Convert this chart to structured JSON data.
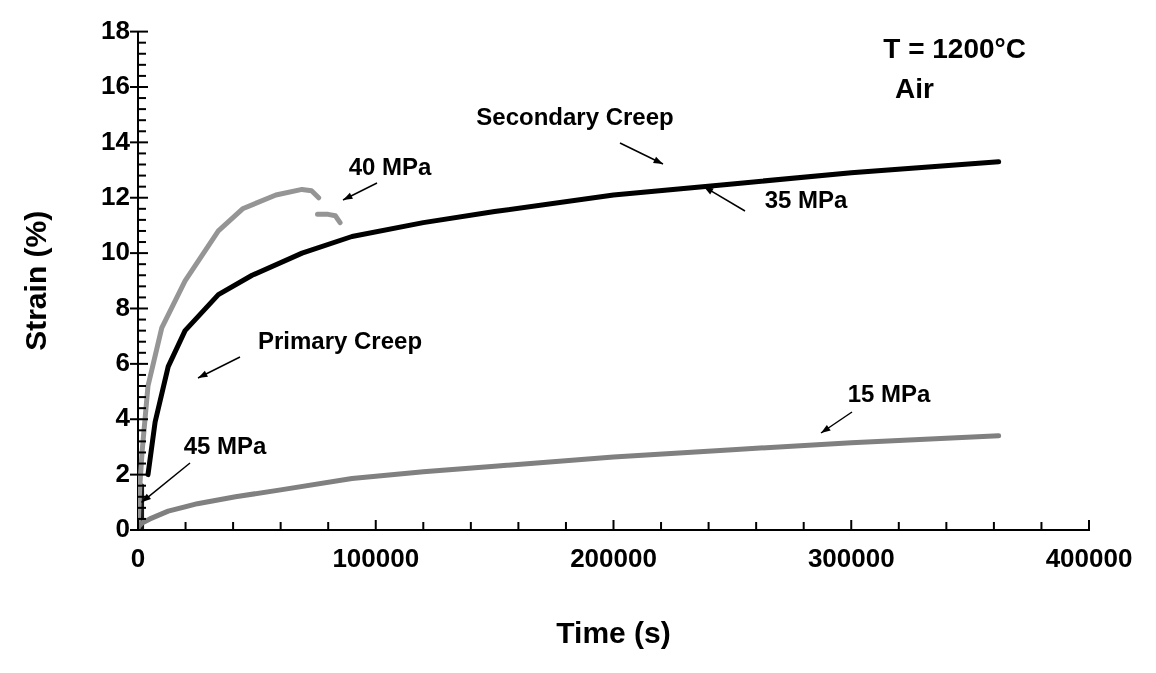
{
  "chart_data": {
    "type": "line",
    "xlabel": "Time (s)",
    "ylabel": "Strain (%)",
    "marker": "none",
    "line_style": "solid",
    "grid": false,
    "legend": false,
    "xlim": [
      0,
      400000
    ],
    "ylim": [
      0,
      18
    ],
    "xticks": [
      0,
      {
        "value": 20000,
        "label": null
      },
      {
        "value": 40000,
        "label": null
      },
      {
        "value": 60000,
        "label": null
      },
      {
        "value": 80000,
        "label": null
      },
      100000,
      {
        "value": 120000,
        "label": null
      },
      {
        "value": 140000,
        "label": null
      },
      {
        "value": 160000,
        "label": null
      },
      {
        "value": 180000,
        "label": null
      },
      200000,
      {
        "value": 220000,
        "label": null
      },
      {
        "value": 240000,
        "label": null
      },
      {
        "value": 260000,
        "label": null
      },
      {
        "value": 280000,
        "label": null
      },
      300000,
      {
        "value": 320000,
        "label": null
      },
      {
        "value": 340000,
        "label": null
      },
      {
        "value": 360000,
        "label": null
      },
      {
        "value": 380000,
        "label": null
      },
      400000
    ],
    "yticks": [
      0,
      {
        "value": 0.4,
        "label": null
      },
      {
        "value": 0.8,
        "label": null
      },
      {
        "value": 1.2,
        "label": null
      },
      {
        "value": 1.6,
        "label": null
      },
      2,
      {
        "value": 2.4,
        "label": null
      },
      {
        "value": 2.8,
        "label": null
      },
      {
        "value": 3.2,
        "label": null
      },
      {
        "value": 3.6,
        "label": null
      },
      4,
      {
        "value": 4.4,
        "label": null
      },
      {
        "value": 4.8,
        "label": null
      },
      {
        "value": 5.2,
        "label": null
      },
      {
        "value": 5.6,
        "label": null
      },
      6,
      {
        "value": 6.4,
        "label": null
      },
      {
        "value": 6.8,
        "label": null
      },
      {
        "value": 7.2,
        "label": null
      },
      {
        "value": 7.6,
        "label": null
      },
      8,
      {
        "value": 8.4,
        "label": null
      },
      {
        "value": 8.8,
        "label": null
      },
      {
        "value": 9.2,
        "label": null
      },
      {
        "value": 9.6,
        "label": null
      },
      10,
      {
        "value": 10.4,
        "label": null
      },
      {
        "value": 10.8,
        "label": null
      },
      {
        "value": 11.2,
        "label": null
      },
      {
        "value": 11.6,
        "label": null
      },
      12,
      {
        "value": 12.4,
        "label": null
      },
      {
        "value": 12.8,
        "label": null
      },
      {
        "value": 13.2,
        "label": null
      },
      {
        "value": 13.6,
        "label": null
      },
      14,
      {
        "value": 14.4,
        "label": null
      },
      {
        "value": 14.8,
        "label": null
      },
      {
        "value": 15.2,
        "label": null
      },
      {
        "value": 15.6,
        "label": null
      },
      16,
      {
        "value": 16.4,
        "label": null
      },
      {
        "value": 16.8,
        "label": null
      },
      {
        "value": 17.2,
        "label": null
      },
      {
        "value": 17.6,
        "label": null
      },
      18
    ],
    "series": [
      {
        "color": "#808080",
        "x": [
          0,
          1700,
          5000,
          12700,
          25000,
          41000,
          60000,
          90000,
          120000,
          150000,
          200000,
          250000,
          300000,
          362000
        ],
        "values": [
          0.1,
          0.25,
          0.4,
          0.68,
          0.95,
          1.2,
          1.45,
          1.86,
          2.1,
          2.3,
          2.64,
          2.9,
          3.15,
          3.4
        ]
      },
      {
        "color": "#000000",
        "x": [
          4200,
          7200,
          12700,
          19800,
          33800,
          48000,
          69000,
          90000,
          120000,
          150000,
          200000,
          250000,
          300000,
          362000
        ],
        "values": [
          2.0,
          3.9,
          5.9,
          7.2,
          8.5,
          9.2,
          10.0,
          10.6,
          11.1,
          11.5,
          12.1,
          12.5,
          12.9,
          13.3
        ]
      },
      {
        "color": "#959595",
        "x": [
          0,
          700,
          1700,
          4200,
          10000,
          19800,
          33800,
          44000,
          58000,
          69000,
          73000,
          76000,
          null,
          75500,
          80000,
          83000,
          85000
        ],
        "values": [
          0,
          1.5,
          2.8,
          5.2,
          7.3,
          9.0,
          10.8,
          11.6,
          12.1,
          12.3,
          12.25,
          12.0,
          null,
          11.4,
          11.4,
          11.35,
          11.1
        ]
      },
      {
        "color": "#1a1a1a",
        "x": [
          1500,
          1500
        ],
        "values": [
          0,
          1.6
        ]
      }
    ],
    "annotations": [
      "T = 1200°C",
      "Air",
      "Secondary Creep",
      {
        "text": "35 MPa",
        "x": 238000,
        "y": 12.4
      },
      "40 MPa",
      "Primary Creep",
      {
        "text": "45 MPa",
        "x": 1500,
        "y": 1.0
      },
      "15 MPa"
    ]
  }
}
